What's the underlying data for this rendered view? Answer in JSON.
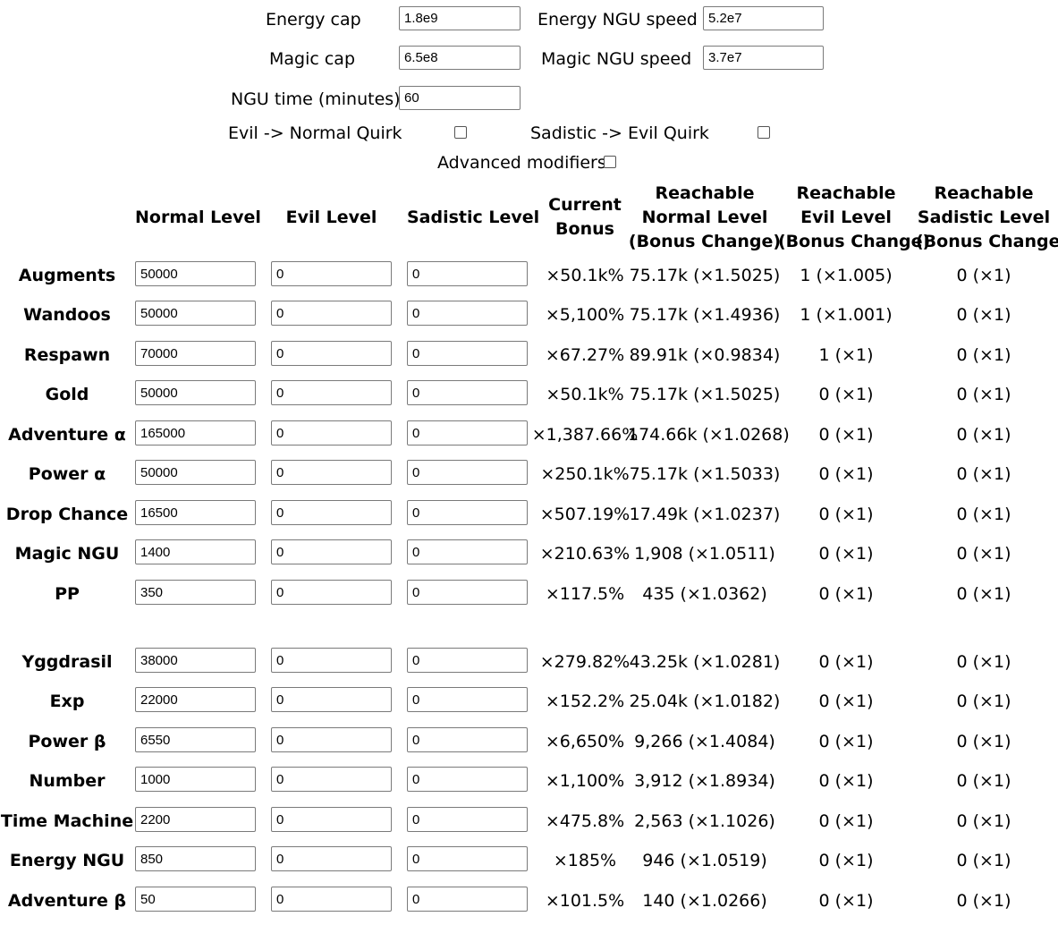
{
  "settings": {
    "energy_cap": {
      "label": "Energy cap",
      "value": "1.8e9"
    },
    "energy_ngu_speed": {
      "label": "Energy NGU speed",
      "value": "5.2e7"
    },
    "magic_cap": {
      "label": "Magic cap",
      "value": "6.5e8"
    },
    "magic_ngu_speed": {
      "label": "Magic NGU speed",
      "value": "3.7e7"
    },
    "ngu_time": {
      "label": "NGU time (minutes)",
      "value": "60"
    },
    "evil_quirk": {
      "label": "Evil -> Normal Quirk",
      "checked": false
    },
    "sadistic_quirk": {
      "label": "Sadistic -> Evil Quirk",
      "checked": false
    },
    "advanced_modifiers": {
      "label": "Advanced modifiers",
      "checked": false
    }
  },
  "table": {
    "headers": {
      "normal_level": "Normal Level",
      "evil_level": "Evil Level",
      "sadistic_level": "Sadistic Level",
      "current_bonus": [
        "Current",
        "Bonus"
      ],
      "reachable_normal": [
        "Reachable",
        "Normal Level",
        "(Bonus Change)"
      ],
      "reachable_evil": [
        "Reachable",
        "Evil Level",
        "(Bonus Change)"
      ],
      "reachable_sadistic": [
        "Reachable",
        "Sadistic Level",
        "(Bonus Change)"
      ]
    },
    "rows": [
      {
        "name": "Augments",
        "normal": "50000",
        "evil": "0",
        "sadistic": "0",
        "current": "×50.1k%",
        "reach_normal": "75.17k (×1.5025)",
        "reach_evil": "1 (×1.005)",
        "reach_sadistic": "0 (×1)"
      },
      {
        "name": "Wandoos",
        "normal": "50000",
        "evil": "0",
        "sadistic": "0",
        "current": "×5,100%",
        "reach_normal": "75.17k (×1.4936)",
        "reach_evil": "1 (×1.001)",
        "reach_sadistic": "0 (×1)"
      },
      {
        "name": "Respawn",
        "normal": "70000",
        "evil": "0",
        "sadistic": "0",
        "current": "×67.27%",
        "reach_normal": "89.91k (×0.9834)",
        "reach_evil": "1 (×1)",
        "reach_sadistic": "0 (×1)"
      },
      {
        "name": "Gold",
        "normal": "50000",
        "evil": "0",
        "sadistic": "0",
        "current": "×50.1k%",
        "reach_normal": "75.17k (×1.5025)",
        "reach_evil": "0 (×1)",
        "reach_sadistic": "0 (×1)"
      },
      {
        "name": "Adventure α",
        "normal": "165000",
        "evil": "0",
        "sadistic": "0",
        "current": "×1,387.66%",
        "reach_normal": "174.66k (×1.0268)",
        "reach_evil": "0 (×1)",
        "reach_sadistic": "0 (×1)"
      },
      {
        "name": "Power α",
        "normal": "50000",
        "evil": "0",
        "sadistic": "0",
        "current": "×250.1k%",
        "reach_normal": "75.17k (×1.5033)",
        "reach_evil": "0 (×1)",
        "reach_sadistic": "0 (×1)"
      },
      {
        "name": "Drop Chance",
        "normal": "16500",
        "evil": "0",
        "sadistic": "0",
        "current": "×507.19%",
        "reach_normal": "17.49k (×1.0237)",
        "reach_evil": "0 (×1)",
        "reach_sadistic": "0 (×1)"
      },
      {
        "name": "Magic NGU",
        "normal": "1400",
        "evil": "0",
        "sadistic": "0",
        "current": "×210.63%",
        "reach_normal": "1,908 (×1.0511)",
        "reach_evil": "0 (×1)",
        "reach_sadistic": "0 (×1)"
      },
      {
        "name": "PP",
        "normal": "350",
        "evil": "0",
        "sadistic": "0",
        "current": "×117.5%",
        "reach_normal": "435 (×1.0362)",
        "reach_evil": "0 (×1)",
        "reach_sadistic": "0 (×1)"
      },
      {
        "name": "Yggdrasil",
        "normal": "38000",
        "evil": "0",
        "sadistic": "0",
        "current": "×279.82%",
        "reach_normal": "43.25k (×1.0281)",
        "reach_evil": "0 (×1)",
        "reach_sadistic": "0 (×1)"
      },
      {
        "name": "Exp",
        "normal": "22000",
        "evil": "0",
        "sadistic": "0",
        "current": "×152.2%",
        "reach_normal": "25.04k (×1.0182)",
        "reach_evil": "0 (×1)",
        "reach_sadistic": "0 (×1)"
      },
      {
        "name": "Power β",
        "normal": "6550",
        "evil": "0",
        "sadistic": "0",
        "current": "×6,650%",
        "reach_normal": "9,266 (×1.4084)",
        "reach_evil": "0 (×1)",
        "reach_sadistic": "0 (×1)"
      },
      {
        "name": "Number",
        "normal": "1000",
        "evil": "0",
        "sadistic": "0",
        "current": "×1,100%",
        "reach_normal": "3,912 (×1.8934)",
        "reach_evil": "0 (×1)",
        "reach_sadistic": "0 (×1)"
      },
      {
        "name": "Time Machine",
        "normal": "2200",
        "evil": "0",
        "sadistic": "0",
        "current": "×475.8%",
        "reach_normal": "2,563 (×1.1026)",
        "reach_evil": "0 (×1)",
        "reach_sadistic": "0 (×1)"
      },
      {
        "name": "Energy NGU",
        "normal": "850",
        "evil": "0",
        "sadistic": "0",
        "current": "×185%",
        "reach_normal": "946 (×1.0519)",
        "reach_evil": "0 (×1)",
        "reach_sadistic": "0 (×1)"
      },
      {
        "name": "Adventure β",
        "normal": "50",
        "evil": "0",
        "sadistic": "0",
        "current": "×101.5%",
        "reach_normal": "140 (×1.0266)",
        "reach_evil": "0 (×1)",
        "reach_sadistic": "0 (×1)"
      }
    ]
  }
}
